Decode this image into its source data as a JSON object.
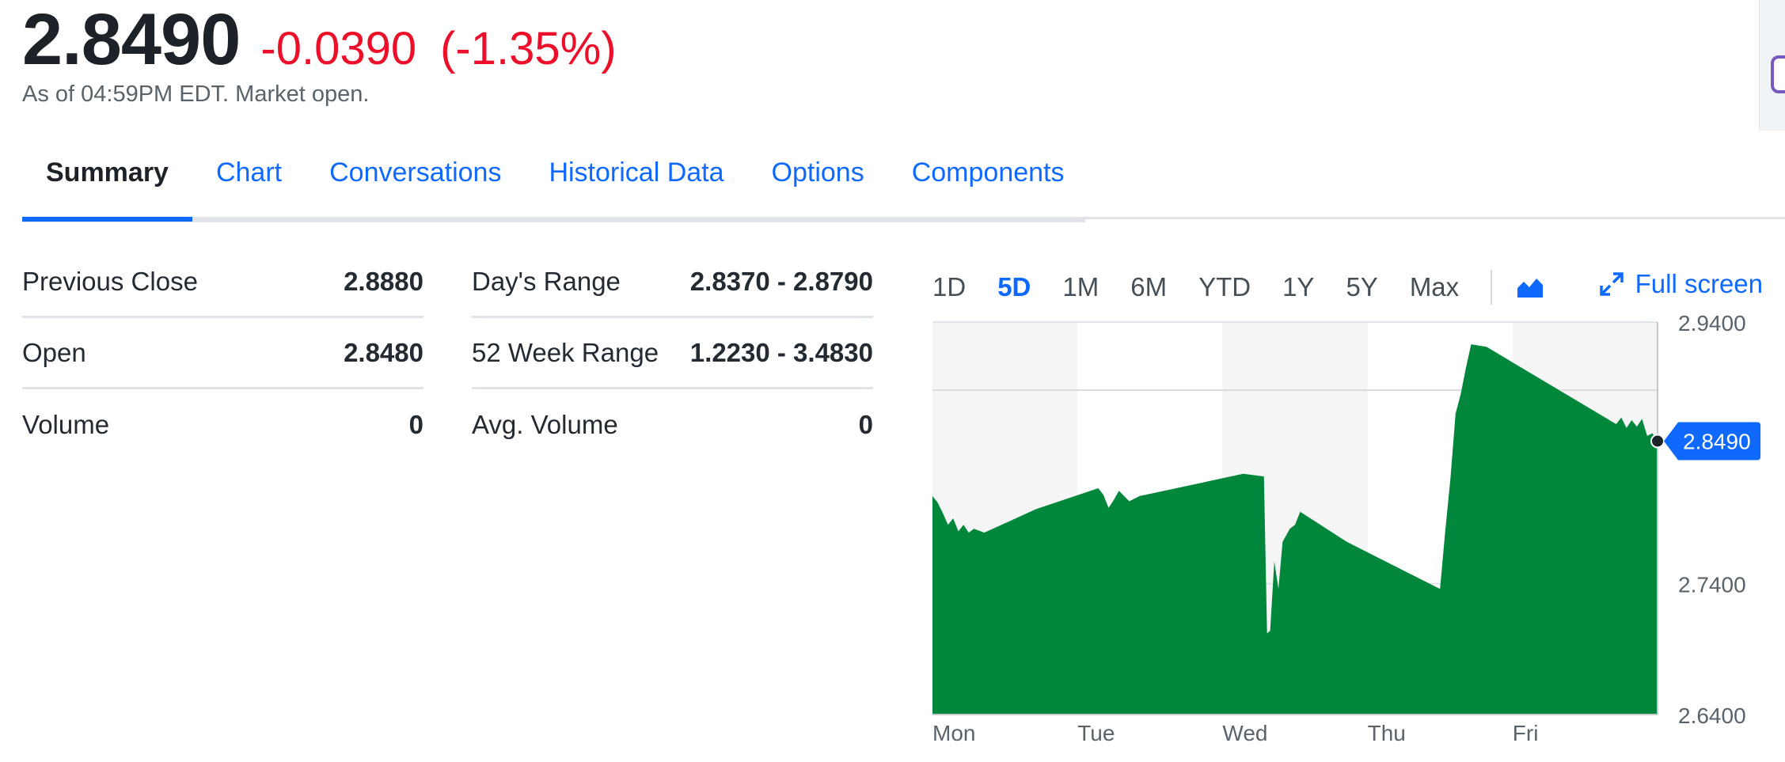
{
  "quote": {
    "price": "2.8490",
    "change": "-0.0390",
    "change_pct": "(-1.35%)",
    "as_of": "As of 04:59PM EDT. Market open."
  },
  "colors": {
    "accent": "#0f69ff",
    "negative": "#eb0f29",
    "chart_fill": "#00873c"
  },
  "tabs": [
    {
      "label": "Summary",
      "active": true
    },
    {
      "label": "Chart"
    },
    {
      "label": "Conversations"
    },
    {
      "label": "Historical Data"
    },
    {
      "label": "Options"
    },
    {
      "label": "Components"
    }
  ],
  "stats_left": [
    {
      "label": "Previous Close",
      "value": "2.8880"
    },
    {
      "label": "Open",
      "value": "2.8480"
    },
    {
      "label": "Volume",
      "value": "0"
    }
  ],
  "stats_right": [
    {
      "label": "Day's Range",
      "value": "2.8370 - 2.8790"
    },
    {
      "label": "52 Week Range",
      "value": "1.2230 - 3.4830"
    },
    {
      "label": "Avg. Volume",
      "value": "0"
    }
  ],
  "range_buttons": [
    "1D",
    "5D",
    "1M",
    "6M",
    "YTD",
    "1Y",
    "5Y",
    "Max"
  ],
  "range_selected": "5D",
  "chart_type_icon": "mountain-chart-icon",
  "fullscreen_label": "Full screen",
  "chart_data": {
    "type": "area",
    "x_labels": [
      "Mon",
      "Tue",
      "Wed",
      "Thu",
      "Fri"
    ],
    "y_ticks": [
      "2.9400",
      "2.7400",
      "2.6400"
    ],
    "y_ticks_values": [
      2.94,
      2.74,
      2.64
    ],
    "ylim": [
      2.64,
      2.94
    ],
    "reference_line": 2.888,
    "current_value": 2.849,
    "current_label": "2.8490",
    "series": [
      {
        "values": [
          [
            0.0,
            2.807
          ],
          [
            0.05,
            2.802
          ],
          [
            0.1,
            2.794
          ],
          [
            0.15,
            2.785
          ],
          [
            0.2,
            2.79
          ],
          [
            0.25,
            2.78
          ],
          [
            0.3,
            2.785
          ],
          [
            0.35,
            2.779
          ],
          [
            0.4,
            2.782
          ],
          [
            0.5,
            2.779
          ],
          [
            1.0,
            2.797
          ],
          [
            1.6,
            2.813
          ],
          [
            1.65,
            2.808
          ],
          [
            1.7,
            2.798
          ],
          [
            1.75,
            2.804
          ],
          [
            1.8,
            2.811
          ],
          [
            1.9,
            2.803
          ],
          [
            2.0,
            2.807
          ],
          [
            3.0,
            2.824
          ],
          [
            3.2,
            2.822
          ],
          [
            3.23,
            2.702
          ],
          [
            3.26,
            2.704
          ],
          [
            3.3,
            2.757
          ],
          [
            3.34,
            2.736
          ],
          [
            3.38,
            2.772
          ],
          [
            3.45,
            2.782
          ],
          [
            3.5,
            2.785
          ],
          [
            3.55,
            2.795
          ],
          [
            4.0,
            2.772
          ],
          [
            4.9,
            2.736
          ],
          [
            4.95,
            2.78
          ],
          [
            5.0,
            2.82
          ],
          [
            5.05,
            2.87
          ],
          [
            5.1,
            2.885
          ],
          [
            5.15,
            2.905
          ],
          [
            5.2,
            2.923
          ],
          [
            5.35,
            2.921
          ],
          [
            6.6,
            2.862
          ],
          [
            6.65,
            2.867
          ],
          [
            6.7,
            2.859
          ],
          [
            6.75,
            2.865
          ],
          [
            6.8,
            2.86
          ],
          [
            6.85,
            2.866
          ],
          [
            6.9,
            2.853
          ],
          [
            6.95,
            2.855
          ],
          [
            7.0,
            2.849
          ]
        ]
      }
    ]
  }
}
